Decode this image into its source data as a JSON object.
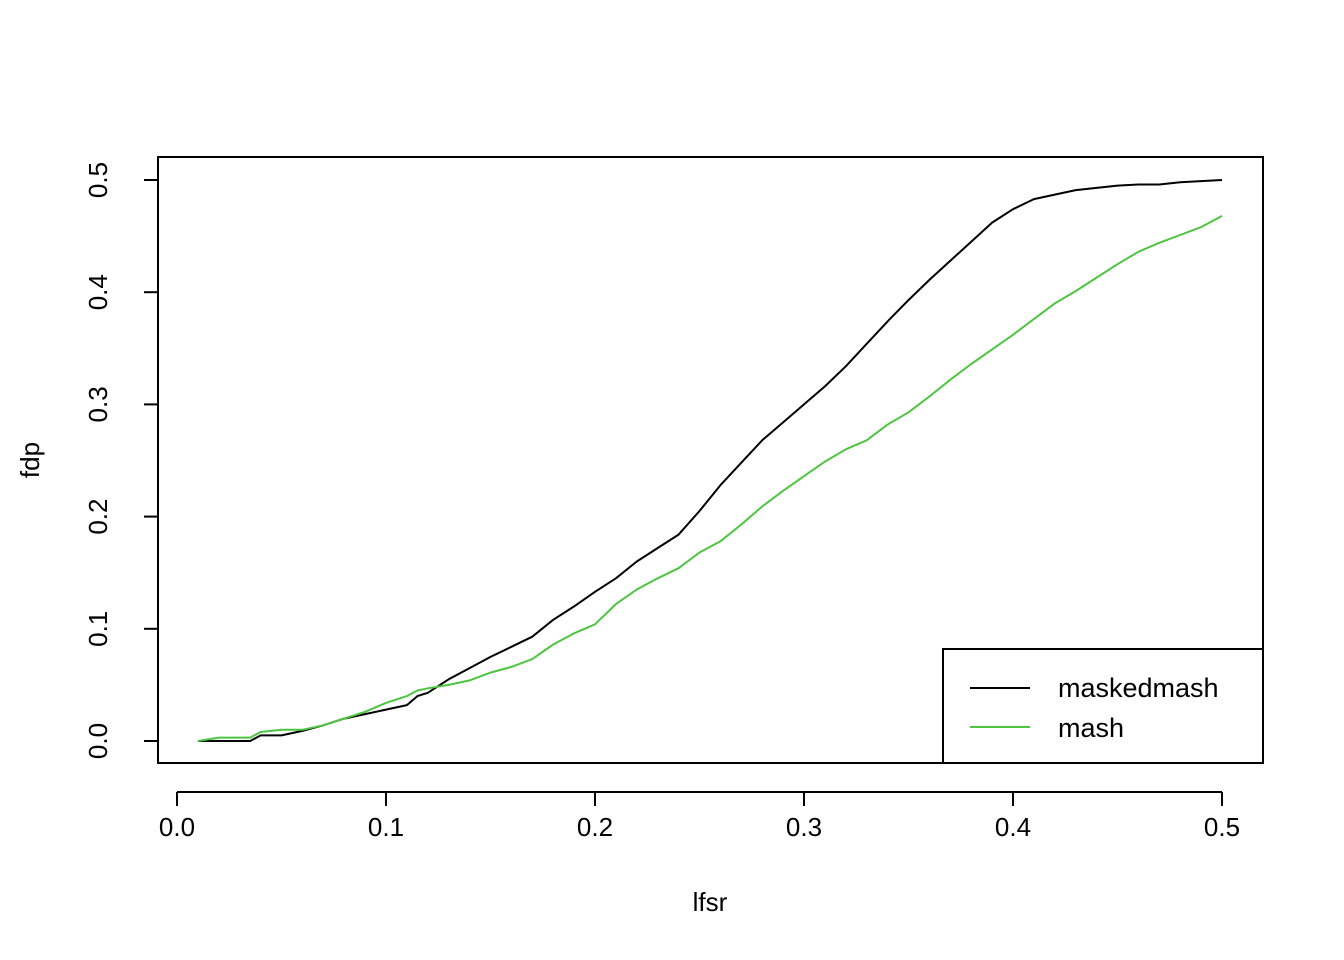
{
  "chart_data": {
    "type": "line",
    "title": "",
    "xlabel": "lfsr",
    "ylabel": "fdp",
    "xlim": [
      0.0,
      0.5
    ],
    "ylim": [
      0.0,
      0.5
    ],
    "x_ticks": [
      "0.0",
      "0.1",
      "0.2",
      "0.3",
      "0.4",
      "0.5"
    ],
    "y_ticks": [
      "0.0",
      "0.1",
      "0.2",
      "0.3",
      "0.4",
      "0.5"
    ],
    "grid": false,
    "legend_position": "bottom-right",
    "x": [
      0.01,
      0.02,
      0.03,
      0.035,
      0.04,
      0.05,
      0.06,
      0.07,
      0.08,
      0.09,
      0.1,
      0.11,
      0.115,
      0.12,
      0.13,
      0.14,
      0.15,
      0.16,
      0.17,
      0.18,
      0.19,
      0.2,
      0.21,
      0.22,
      0.23,
      0.24,
      0.25,
      0.26,
      0.27,
      0.28,
      0.29,
      0.3,
      0.31,
      0.32,
      0.33,
      0.34,
      0.35,
      0.36,
      0.37,
      0.38,
      0.39,
      0.4,
      0.41,
      0.42,
      0.43,
      0.44,
      0.45,
      0.46,
      0.47,
      0.48,
      0.49,
      0.5
    ],
    "series": [
      {
        "name": "maskedmash",
        "color": "#000000",
        "values": [
          0.0,
          0.0,
          0.0,
          0.0,
          0.005,
          0.005,
          0.009,
          0.014,
          0.02,
          0.024,
          0.028,
          0.032,
          0.04,
          0.043,
          0.055,
          0.065,
          0.075,
          0.084,
          0.093,
          0.108,
          0.12,
          0.133,
          0.145,
          0.16,
          0.172,
          0.184,
          0.205,
          0.228,
          0.248,
          0.268,
          0.284,
          0.3,
          0.316,
          0.334,
          0.354,
          0.374,
          0.393,
          0.411,
          0.428,
          0.445,
          0.462,
          0.474,
          0.483,
          0.487,
          0.491,
          0.493,
          0.495,
          0.496,
          0.496,
          0.498,
          0.499,
          0.5
        ]
      },
      {
        "name": "mash",
        "color": "#4DC541",
        "values": [
          0.0,
          0.003,
          0.003,
          0.003,
          0.008,
          0.01,
          0.01,
          0.014,
          0.02,
          0.026,
          0.034,
          0.04,
          0.045,
          0.047,
          0.05,
          0.054,
          0.061,
          0.066,
          0.073,
          0.086,
          0.096,
          0.104,
          0.122,
          0.135,
          0.145,
          0.154,
          0.168,
          0.178,
          0.193,
          0.209,
          0.223,
          0.236,
          0.249,
          0.26,
          0.268,
          0.282,
          0.293,
          0.307,
          0.322,
          0.336,
          0.349,
          0.362,
          0.376,
          0.39,
          0.401,
          0.413,
          0.425,
          0.436,
          0.444,
          0.451,
          0.458,
          0.468
        ]
      }
    ]
  }
}
